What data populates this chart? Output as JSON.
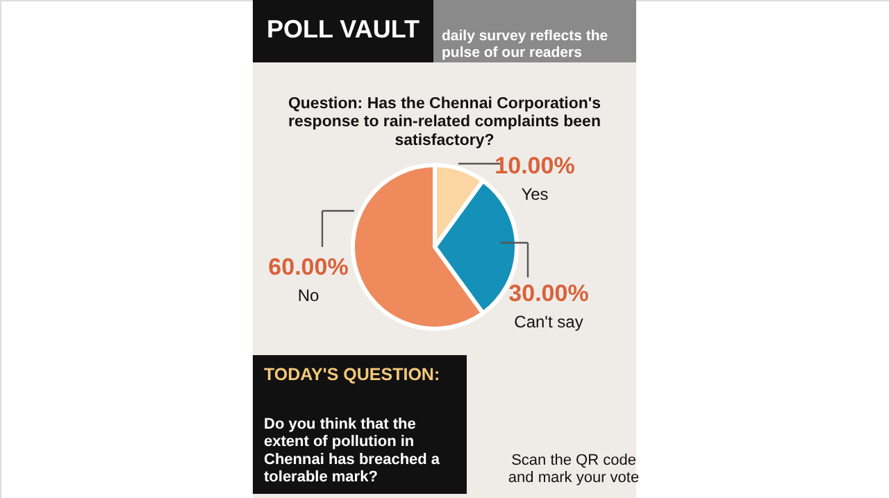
{
  "chart_data": {
    "type": "pie",
    "title": "POLL VAULT",
    "subtitle": "daily survey reflects the pulse of our readers",
    "categories": [
      "Yes",
      "Can't say",
      "No"
    ],
    "values": [
      10,
      30,
      60
    ],
    "colors": [
      "#fbd6a2",
      "#1590b8",
      "#ee8a5c"
    ],
    "value_labels": [
      "10.00%",
      "30.00%",
      "60.00%"
    ],
    "legend": false,
    "annotations": [
      "Question: Has the Chennai Corporation's response to rain-related complaints been satisfactory?",
      "TODAY'S QUESTION:",
      "Do you think that the extent of pollution in Chennai has breached a tolerable mark?",
      "Scan the QR code and mark your vote"
    ]
  }
}
